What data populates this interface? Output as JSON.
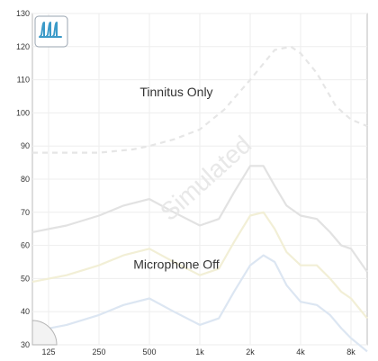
{
  "chart_data": {
    "type": "line",
    "title": "",
    "xlabel": "",
    "ylabel": "",
    "x_scale": "log",
    "x_ticks": [
      125,
      250,
      500,
      1000,
      2000,
      4000,
      8000
    ],
    "x_tick_labels": [
      "125",
      "250",
      "500",
      "1k",
      "2k",
      "4k",
      "8k"
    ],
    "y_ticks": [
      30,
      40,
      50,
      60,
      70,
      80,
      90,
      100,
      110,
      120,
      130
    ],
    "y_tick_labels": [
      "30",
      "40",
      "50",
      "60",
      "70",
      "80",
      "90",
      "100",
      "110",
      "120",
      "130"
    ],
    "xlim": [
      100,
      10000
    ],
    "ylim": [
      30,
      130
    ],
    "grid": true,
    "watermark": "Simulated",
    "annotations": [
      {
        "text": "Tinnitus Only",
        "x": 800,
        "y": 105
      },
      {
        "text": "Microphone Off",
        "x": 800,
        "y": 53
      }
    ],
    "series": [
      {
        "style": "dashed",
        "color": "#e6e6e6",
        "x": [
          100,
          160,
          250,
          400,
          500,
          700,
          1000,
          1400,
          2000,
          2800,
          3500,
          4000,
          5000,
          6500,
          8000,
          10000
        ],
        "y": [
          88,
          88,
          88,
          89,
          90,
          92,
          95,
          101,
          110,
          119,
          120,
          118,
          112,
          102,
          98,
          96
        ]
      },
      {
        "style": "solid",
        "color": "#e2e2e2",
        "x": [
          100,
          160,
          250,
          350,
          500,
          700,
          1000,
          1300,
          1600,
          2000,
          2400,
          2800,
          3300,
          4000,
          5000,
          6000,
          7000,
          8000,
          10000
        ],
        "y": [
          64,
          66,
          69,
          72,
          74,
          70,
          66,
          68,
          76,
          84,
          84,
          78,
          72,
          69,
          68,
          64,
          60,
          59,
          52
        ]
      },
      {
        "style": "solid",
        "color": "#f2efd6",
        "x": [
          100,
          160,
          250,
          350,
          500,
          700,
          1000,
          1300,
          1600,
          2000,
          2400,
          2800,
          3300,
          4000,
          5000,
          6000,
          7000,
          8000,
          10000
        ],
        "y": [
          49,
          51,
          54,
          57,
          59,
          55,
          51,
          53,
          61,
          69,
          70,
          65,
          58,
          54,
          54,
          50,
          46,
          44,
          38
        ]
      },
      {
        "style": "solid",
        "color": "#dce6f2",
        "x": [
          100,
          160,
          250,
          350,
          500,
          700,
          1000,
          1300,
          1600,
          2000,
          2400,
          2800,
          3300,
          4000,
          5000,
          6000,
          7000,
          8000,
          10000
        ],
        "y": [
          34,
          36,
          39,
          42,
          44,
          40,
          36,
          38,
          46,
          54,
          57,
          55,
          48,
          43,
          42,
          39,
          35,
          32,
          28
        ]
      }
    ],
    "colors": {
      "grid": "#eeeeee",
      "frame": "#bbbbbb",
      "ticks": "#333333"
    },
    "icons": [
      "tinnitus-wave-icon",
      "corner-quarter-circle-icon"
    ]
  }
}
